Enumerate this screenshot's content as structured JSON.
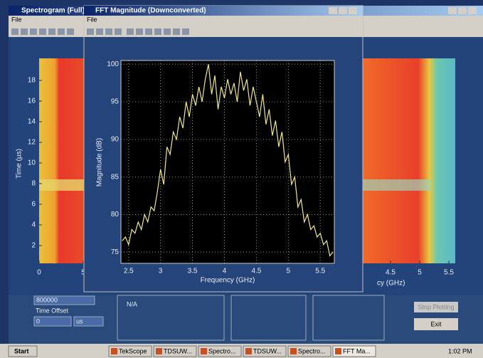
{
  "spectrogram_window": {
    "title": "Spectrogram (Full)",
    "menu": "File",
    "yticks": [
      2,
      4,
      6,
      8,
      10,
      12,
      14,
      16,
      18
    ],
    "ylabel": "Time (µs)",
    "xticks_left": [
      0,
      5
    ],
    "xticks_right": [
      4.5,
      5,
      5.5
    ],
    "xlabel": "cy (GHz)"
  },
  "fft_window": {
    "title": "FFT Magnitude (Downconverted)",
    "menu": "File"
  },
  "chart_data": {
    "type": "line",
    "xlabel": "Frequency (GHz)",
    "ylabel": "Magnitude (dB)",
    "xlim": [
      2.38,
      5.72
    ],
    "ylim": [
      73.5,
      100.5
    ],
    "xticks": [
      2.5,
      3,
      3.5,
      4,
      4.5,
      5,
      5.5
    ],
    "yticks": [
      75,
      80,
      85,
      90,
      95,
      100
    ],
    "grid": true,
    "color": "#f2e88a",
    "x": [
      2.4,
      2.45,
      2.5,
      2.55,
      2.6,
      2.65,
      2.7,
      2.75,
      2.8,
      2.85,
      2.9,
      2.95,
      3.0,
      3.05,
      3.1,
      3.15,
      3.2,
      3.25,
      3.3,
      3.35,
      3.4,
      3.45,
      3.5,
      3.55,
      3.6,
      3.65,
      3.7,
      3.75,
      3.8,
      3.85,
      3.9,
      3.95,
      4.0,
      4.05,
      4.1,
      4.15,
      4.2,
      4.25,
      4.3,
      4.35,
      4.4,
      4.45,
      4.5,
      4.55,
      4.6,
      4.65,
      4.7,
      4.75,
      4.8,
      4.85,
      4.9,
      4.95,
      5.0,
      5.05,
      5.1,
      5.15,
      5.2,
      5.25,
      5.3,
      5.35,
      5.4,
      5.45,
      5.5,
      5.55,
      5.6,
      5.65,
      5.7
    ],
    "values": [
      76.5,
      77,
      76,
      78,
      77.5,
      79,
      78,
      80,
      79,
      81,
      80.5,
      83,
      86,
      84,
      89,
      88,
      91,
      90,
      93,
      91.5,
      95,
      93,
      96,
      94.5,
      97,
      95,
      98,
      100,
      96,
      98.5,
      94,
      97,
      95.5,
      98,
      96,
      97.5,
      95,
      99,
      96.5,
      98,
      94.5,
      97,
      95,
      93,
      96,
      92,
      94,
      90.5,
      92.5,
      89,
      91,
      87,
      88,
      84,
      85,
      81,
      82,
      79,
      80,
      78,
      78.5,
      77,
      77.5,
      76,
      76.5,
      74.5,
      75
    ]
  },
  "control_panel": {
    "sample_field": "800000",
    "offset_label": "Time Offset",
    "offset_value": "0",
    "offset_unit": "us",
    "status": "N/A",
    "stop_button": "Stop Plotting",
    "exit_button": "Exit"
  },
  "taskbar": {
    "start": "Start",
    "items": [
      "TekScope",
      "TDSUW...",
      "Spectro...",
      "TDSUW...",
      "Spectro...",
      "FFT Ma..."
    ],
    "clock": "1:02 PM"
  }
}
